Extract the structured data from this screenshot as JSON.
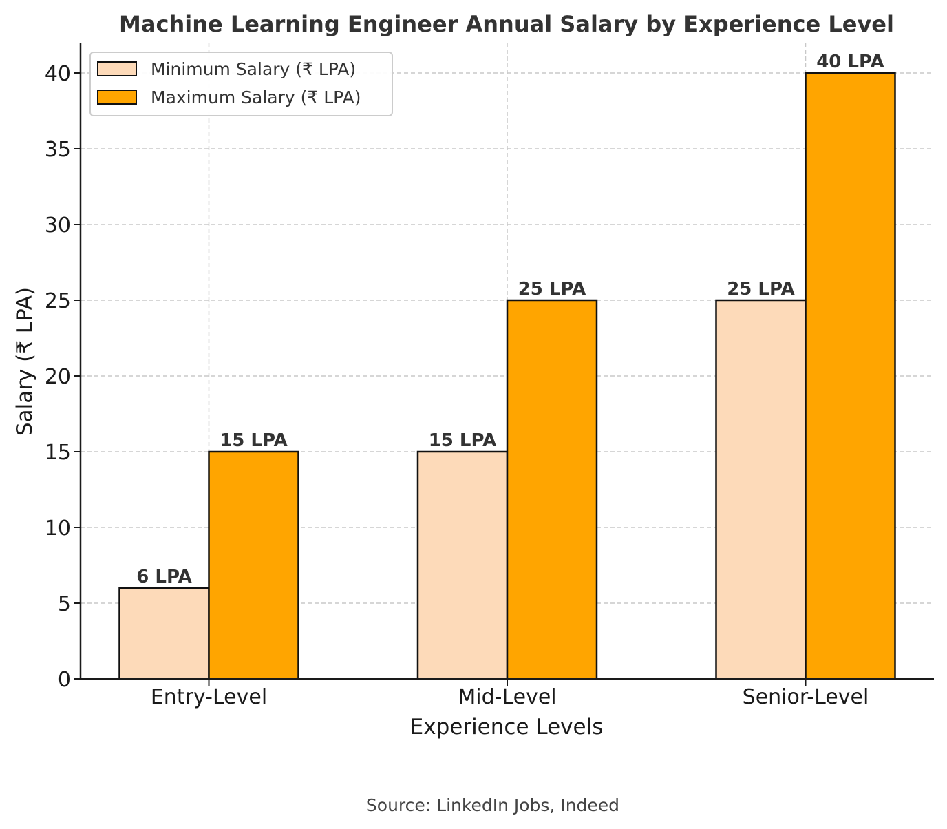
{
  "chart_data": {
    "type": "bar",
    "title": "Machine Learning Engineer Annual Salary by Experience Level",
    "xlabel": "Experience Levels",
    "ylabel": "Salary (₹ LPA)",
    "categories": [
      "Entry-Level",
      "Mid-Level",
      "Senior-Level"
    ],
    "series": [
      {
        "name": "Minimum Salary (₹ LPA)",
        "values": [
          6,
          15,
          25
        ],
        "labels": [
          "6 LPA",
          "15 LPA",
          "25 LPA"
        ],
        "color": "#FDDAB9"
      },
      {
        "name": "Maximum Salary (₹ LPA)",
        "values": [
          15,
          25,
          40
        ],
        "labels": [
          "15 LPA",
          "25 LPA",
          "40 LPA"
        ],
        "color": "#FFA500"
      }
    ],
    "ylim": [
      0,
      42
    ],
    "yticks": [
      0,
      5,
      10,
      15,
      20,
      25,
      30,
      35,
      40
    ],
    "grid": true,
    "legend_position": "top-left"
  },
  "source": "Source: LinkedIn Jobs, Indeed"
}
